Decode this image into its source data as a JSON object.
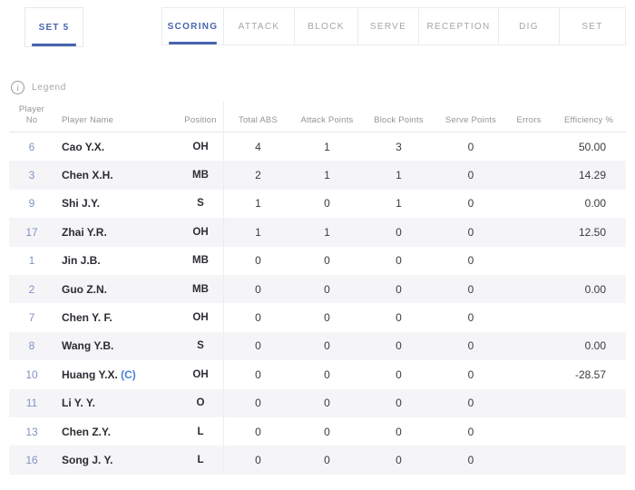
{
  "set_selector": {
    "label": "SET 5"
  },
  "tabs": [
    {
      "label": "SCORING",
      "active": true
    },
    {
      "label": "ATTACK",
      "active": false
    },
    {
      "label": "BLOCK",
      "active": false
    },
    {
      "label": "SERVE",
      "active": false
    },
    {
      "label": "RECEPTION",
      "active": false
    },
    {
      "label": "DIG",
      "active": false
    },
    {
      "label": "SET",
      "active": false
    }
  ],
  "legend": {
    "label": "Legend",
    "icon": "info-icon"
  },
  "colors": {
    "accent_blue": "#4565ae",
    "captain_blue": "#4a80d6",
    "player_no_blue": "#8193c5",
    "alt_row_bg": "#f5f5f7",
    "inactive_tab_gray": "#a6a6ab"
  },
  "table": {
    "captain_marker": "(C)",
    "columns": [
      "Player No",
      "Player Name",
      "Position",
      "Total ABS",
      "Attack Points",
      "Block Points",
      "Serve Points",
      "Errors",
      "Efficiency %"
    ],
    "rows": [
      {
        "no": "6",
        "name": "Cao Y.X.",
        "captain": false,
        "position": "OH",
        "total_abs": "4",
        "attack_points": "1",
        "block_points": "3",
        "serve_points": "0",
        "errors": "",
        "efficiency": "50.00"
      },
      {
        "no": "3",
        "name": "Chen X.H.",
        "captain": false,
        "position": "MB",
        "total_abs": "2",
        "attack_points": "1",
        "block_points": "1",
        "serve_points": "0",
        "errors": "",
        "efficiency": "14.29"
      },
      {
        "no": "9",
        "name": "Shi J.Y.",
        "captain": false,
        "position": "S",
        "total_abs": "1",
        "attack_points": "0",
        "block_points": "1",
        "serve_points": "0",
        "errors": "",
        "efficiency": "0.00"
      },
      {
        "no": "17",
        "name": "Zhai Y.R.",
        "captain": false,
        "position": "OH",
        "total_abs": "1",
        "attack_points": "1",
        "block_points": "0",
        "serve_points": "0",
        "errors": "",
        "efficiency": "12.50"
      },
      {
        "no": "1",
        "name": "Jin J.B.",
        "captain": false,
        "position": "MB",
        "total_abs": "0",
        "attack_points": "0",
        "block_points": "0",
        "serve_points": "0",
        "errors": "",
        "efficiency": ""
      },
      {
        "no": "2",
        "name": "Guo Z.N.",
        "captain": false,
        "position": "MB",
        "total_abs": "0",
        "attack_points": "0",
        "block_points": "0",
        "serve_points": "0",
        "errors": "",
        "efficiency": "0.00"
      },
      {
        "no": "7",
        "name": "Chen Y. F.",
        "captain": false,
        "position": "OH",
        "total_abs": "0",
        "attack_points": "0",
        "block_points": "0",
        "serve_points": "0",
        "errors": "",
        "efficiency": ""
      },
      {
        "no": "8",
        "name": "Wang Y.B.",
        "captain": false,
        "position": "S",
        "total_abs": "0",
        "attack_points": "0",
        "block_points": "0",
        "serve_points": "0",
        "errors": "",
        "efficiency": "0.00"
      },
      {
        "no": "10",
        "name": "Huang Y.X.",
        "captain": true,
        "position": "OH",
        "total_abs": "0",
        "attack_points": "0",
        "block_points": "0",
        "serve_points": "0",
        "errors": "",
        "efficiency": "-28.57"
      },
      {
        "no": "11",
        "name": "Li Y. Y.",
        "captain": false,
        "position": "O",
        "total_abs": "0",
        "attack_points": "0",
        "block_points": "0",
        "serve_points": "0",
        "errors": "",
        "efficiency": ""
      },
      {
        "no": "13",
        "name": "Chen Z.Y.",
        "captain": false,
        "position": "L",
        "total_abs": "0",
        "attack_points": "0",
        "block_points": "0",
        "serve_points": "0",
        "errors": "",
        "efficiency": ""
      },
      {
        "no": "16",
        "name": "Song J. Y.",
        "captain": false,
        "position": "L",
        "total_abs": "0",
        "attack_points": "0",
        "block_points": "0",
        "serve_points": "0",
        "errors": "",
        "efficiency": ""
      }
    ]
  }
}
